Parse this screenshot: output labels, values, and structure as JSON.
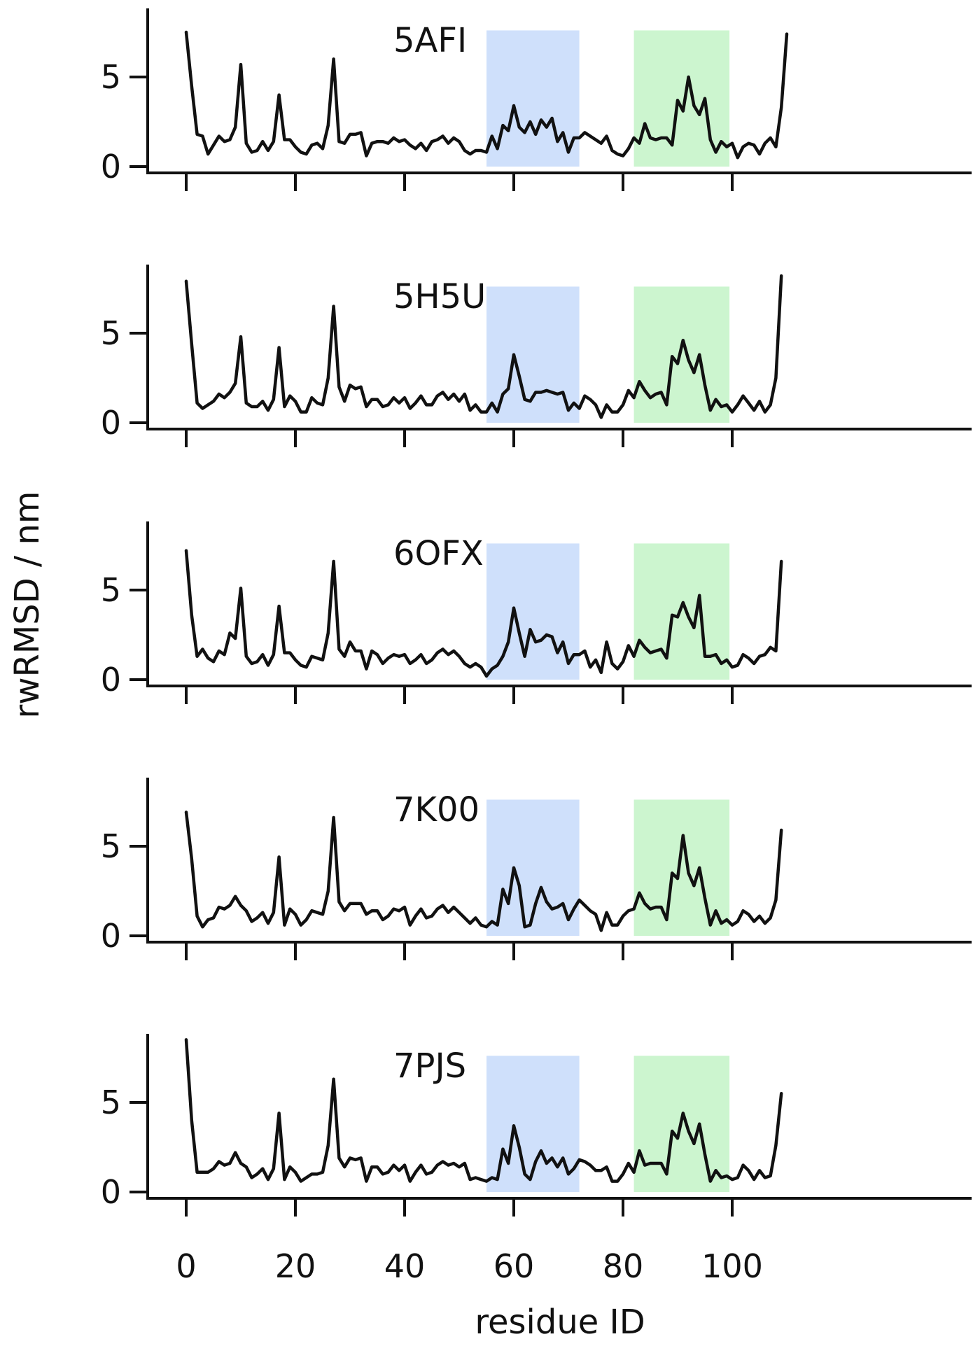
{
  "chart_data": {
    "type": "line",
    "xlabel": "residue ID",
    "ylabel": "rwRMSD / nm",
    "xlim": [
      -5,
      115
    ],
    "ylim": [
      -0.3,
      8.2
    ],
    "x_ticks": [
      0,
      20,
      40,
      60,
      80,
      100
    ],
    "y_ticks": [
      0,
      5
    ],
    "grid": false,
    "line_color": "#111111",
    "highlight_regions": [
      {
        "from": 55,
        "to": 72,
        "color": "#cfe0fb"
      },
      {
        "from": 82,
        "to": 99.5,
        "color": "#ccf5cf"
      }
    ],
    "region_top": 7.6,
    "panels": [
      {
        "name": "5AFI",
        "x_start": 0,
        "values": [
          7.5,
          4.5,
          1.8,
          1.7,
          0.7,
          1.2,
          1.7,
          1.4,
          1.5,
          2.2,
          5.7,
          1.3,
          0.8,
          0.9,
          1.4,
          0.9,
          1.4,
          4.0,
          1.5,
          1.5,
          1.1,
          0.8,
          0.7,
          1.2,
          1.3,
          1.0,
          2.3,
          6.0,
          1.4,
          1.3,
          1.8,
          1.8,
          1.9,
          0.6,
          1.3,
          1.4,
          1.4,
          1.3,
          1.6,
          1.4,
          1.5,
          1.2,
          1.0,
          1.3,
          0.9,
          1.4,
          1.5,
          1.7,
          1.3,
          1.6,
          1.4,
          0.9,
          0.7,
          0.9,
          0.9,
          0.8,
          1.7,
          1.0,
          2.3,
          2.0,
          3.4,
          2.2,
          1.9,
          2.5,
          1.8,
          2.6,
          2.2,
          2.7,
          1.4,
          1.9,
          0.8,
          1.6,
          1.6,
          1.9,
          1.7,
          1.5,
          1.3,
          1.7,
          0.9,
          0.7,
          0.6,
          1.0,
          1.6,
          1.3,
          2.4,
          1.6,
          1.5,
          1.6,
          1.6,
          1.2,
          3.7,
          3.1,
          5.0,
          3.4,
          2.9,
          3.8,
          1.5,
          0.8,
          1.4,
          1.1,
          1.3,
          0.5,
          1.1,
          1.3,
          1.2,
          0.7,
          1.3,
          1.6,
          1.1,
          3.3,
          7.4
        ]
      },
      {
        "name": "5H5U",
        "x_start": 0,
        "values": [
          7.9,
          4.4,
          1.1,
          0.8,
          1.0,
          1.2,
          1.6,
          1.4,
          1.7,
          2.2,
          4.8,
          1.1,
          0.9,
          0.9,
          1.2,
          0.7,
          1.3,
          4.2,
          0.9,
          1.5,
          1.2,
          0.6,
          0.6,
          1.4,
          1.1,
          1.0,
          2.5,
          6.5,
          2.0,
          1.2,
          2.1,
          1.9,
          2.0,
          0.9,
          1.3,
          1.3,
          0.9,
          1.0,
          1.4,
          1.1,
          1.4,
          0.8,
          1.1,
          1.5,
          1.0,
          1.0,
          1.5,
          1.7,
          1.3,
          1.6,
          1.2,
          1.6,
          0.7,
          1.0,
          0.6,
          0.6,
          1.1,
          0.6,
          1.6,
          1.9,
          3.8,
          2.6,
          1.3,
          1.2,
          1.7,
          1.7,
          1.8,
          1.7,
          1.6,
          1.7,
          0.7,
          1.1,
          0.8,
          1.5,
          1.3,
          1.0,
          0.3,
          1.0,
          0.6,
          0.6,
          1.0,
          1.8,
          1.4,
          2.3,
          1.8,
          1.4,
          1.6,
          1.7,
          1.0,
          3.7,
          3.3,
          4.6,
          3.5,
          2.8,
          3.8,
          2.1,
          0.7,
          1.3,
          0.9,
          1.0,
          0.6,
          1.0,
          1.5,
          1.1,
          0.7,
          1.2,
          0.6,
          1.0,
          2.5,
          8.2
        ]
      },
      {
        "name": "6OFX",
        "x_start": 0,
        "values": [
          7.2,
          3.6,
          1.3,
          1.7,
          1.2,
          1.0,
          1.6,
          1.4,
          2.6,
          2.3,
          5.1,
          1.3,
          0.9,
          1.0,
          1.4,
          0.8,
          1.4,
          4.1,
          1.5,
          1.5,
          1.1,
          0.8,
          0.7,
          1.3,
          1.2,
          1.1,
          2.6,
          6.6,
          1.7,
          1.3,
          2.1,
          1.6,
          1.6,
          0.6,
          1.6,
          1.4,
          0.9,
          1.2,
          1.4,
          1.3,
          1.4,
          0.9,
          1.1,
          1.4,
          0.9,
          1.1,
          1.5,
          1.7,
          1.4,
          1.6,
          1.3,
          0.9,
          0.7,
          0.9,
          0.7,
          0.2,
          0.6,
          0.8,
          1.3,
          2.1,
          4.0,
          2.6,
          1.3,
          2.8,
          2.1,
          2.2,
          2.5,
          2.4,
          1.5,
          2.1,
          0.9,
          1.4,
          1.4,
          1.6,
          0.7,
          1.1,
          0.4,
          2.1,
          0.9,
          0.6,
          1.0,
          1.9,
          1.3,
          2.2,
          1.8,
          1.5,
          1.6,
          1.7,
          1.2,
          3.6,
          3.5,
          4.3,
          3.5,
          2.9,
          4.7,
          1.3,
          1.3,
          1.4,
          0.9,
          1.1,
          0.7,
          0.8,
          1.4,
          1.2,
          0.9,
          1.3,
          1.4,
          1.8,
          1.6,
          6.6
        ]
      },
      {
        "name": "7K00",
        "x_start": 0,
        "values": [
          6.9,
          4.3,
          1.1,
          0.5,
          0.9,
          1.0,
          1.6,
          1.5,
          1.7,
          2.2,
          1.7,
          1.4,
          0.8,
          1.0,
          1.3,
          0.7,
          1.3,
          4.4,
          0.6,
          1.5,
          1.2,
          0.6,
          0.9,
          1.4,
          1.3,
          1.2,
          2.5,
          6.6,
          1.9,
          1.4,
          1.8,
          1.8,
          1.8,
          1.2,
          1.4,
          1.4,
          0.9,
          1.1,
          1.5,
          1.4,
          1.6,
          0.6,
          1.1,
          1.5,
          1.0,
          1.1,
          1.5,
          1.7,
          1.3,
          1.6,
          1.3,
          1.0,
          0.7,
          1.0,
          0.6,
          0.5,
          0.8,
          0.6,
          2.6,
          1.8,
          3.8,
          2.8,
          0.5,
          0.6,
          1.8,
          2.7,
          1.9,
          1.5,
          1.6,
          1.8,
          0.9,
          1.5,
          2.0,
          1.7,
          1.4,
          1.2,
          0.3,
          1.3,
          0.6,
          0.6,
          1.1,
          1.4,
          1.5,
          2.4,
          1.8,
          1.5,
          1.6,
          1.6,
          0.9,
          3.5,
          3.2,
          5.6,
          3.5,
          2.8,
          3.8,
          2.1,
          0.6,
          1.4,
          0.7,
          0.9,
          0.6,
          0.8,
          1.4,
          1.2,
          0.8,
          1.1,
          0.7,
          1.0,
          2.0,
          5.9
        ]
      },
      {
        "name": "7PJS",
        "x_start": 0,
        "values": [
          8.5,
          4.0,
          1.1,
          1.1,
          1.1,
          1.3,
          1.7,
          1.5,
          1.6,
          2.2,
          1.6,
          1.4,
          0.8,
          1.0,
          1.3,
          0.7,
          1.3,
          4.4,
          0.7,
          1.4,
          1.1,
          0.6,
          0.8,
          1.0,
          1.0,
          1.1,
          2.6,
          6.3,
          1.9,
          1.4,
          1.9,
          1.8,
          1.9,
          0.6,
          1.4,
          1.4,
          1.0,
          1.1,
          1.5,
          1.2,
          1.5,
          0.6,
          1.1,
          1.5,
          1.0,
          1.1,
          1.5,
          1.7,
          1.5,
          1.6,
          1.4,
          1.6,
          0.7,
          0.8,
          0.7,
          0.6,
          0.8,
          0.7,
          2.4,
          1.6,
          3.7,
          2.5,
          1.0,
          0.7,
          1.7,
          2.3,
          1.6,
          1.9,
          1.4,
          1.9,
          1.0,
          1.3,
          1.8,
          1.7,
          1.5,
          1.2,
          1.2,
          1.4,
          0.6,
          0.6,
          1.0,
          1.6,
          1.1,
          2.3,
          1.5,
          1.6,
          1.6,
          1.6,
          1.0,
          3.4,
          3.0,
          4.4,
          3.4,
          2.7,
          3.8,
          2.1,
          0.6,
          1.2,
          0.8,
          0.9,
          0.7,
          0.8,
          1.5,
          1.2,
          0.7,
          1.2,
          0.8,
          0.9,
          2.6,
          5.5
        ]
      }
    ]
  }
}
